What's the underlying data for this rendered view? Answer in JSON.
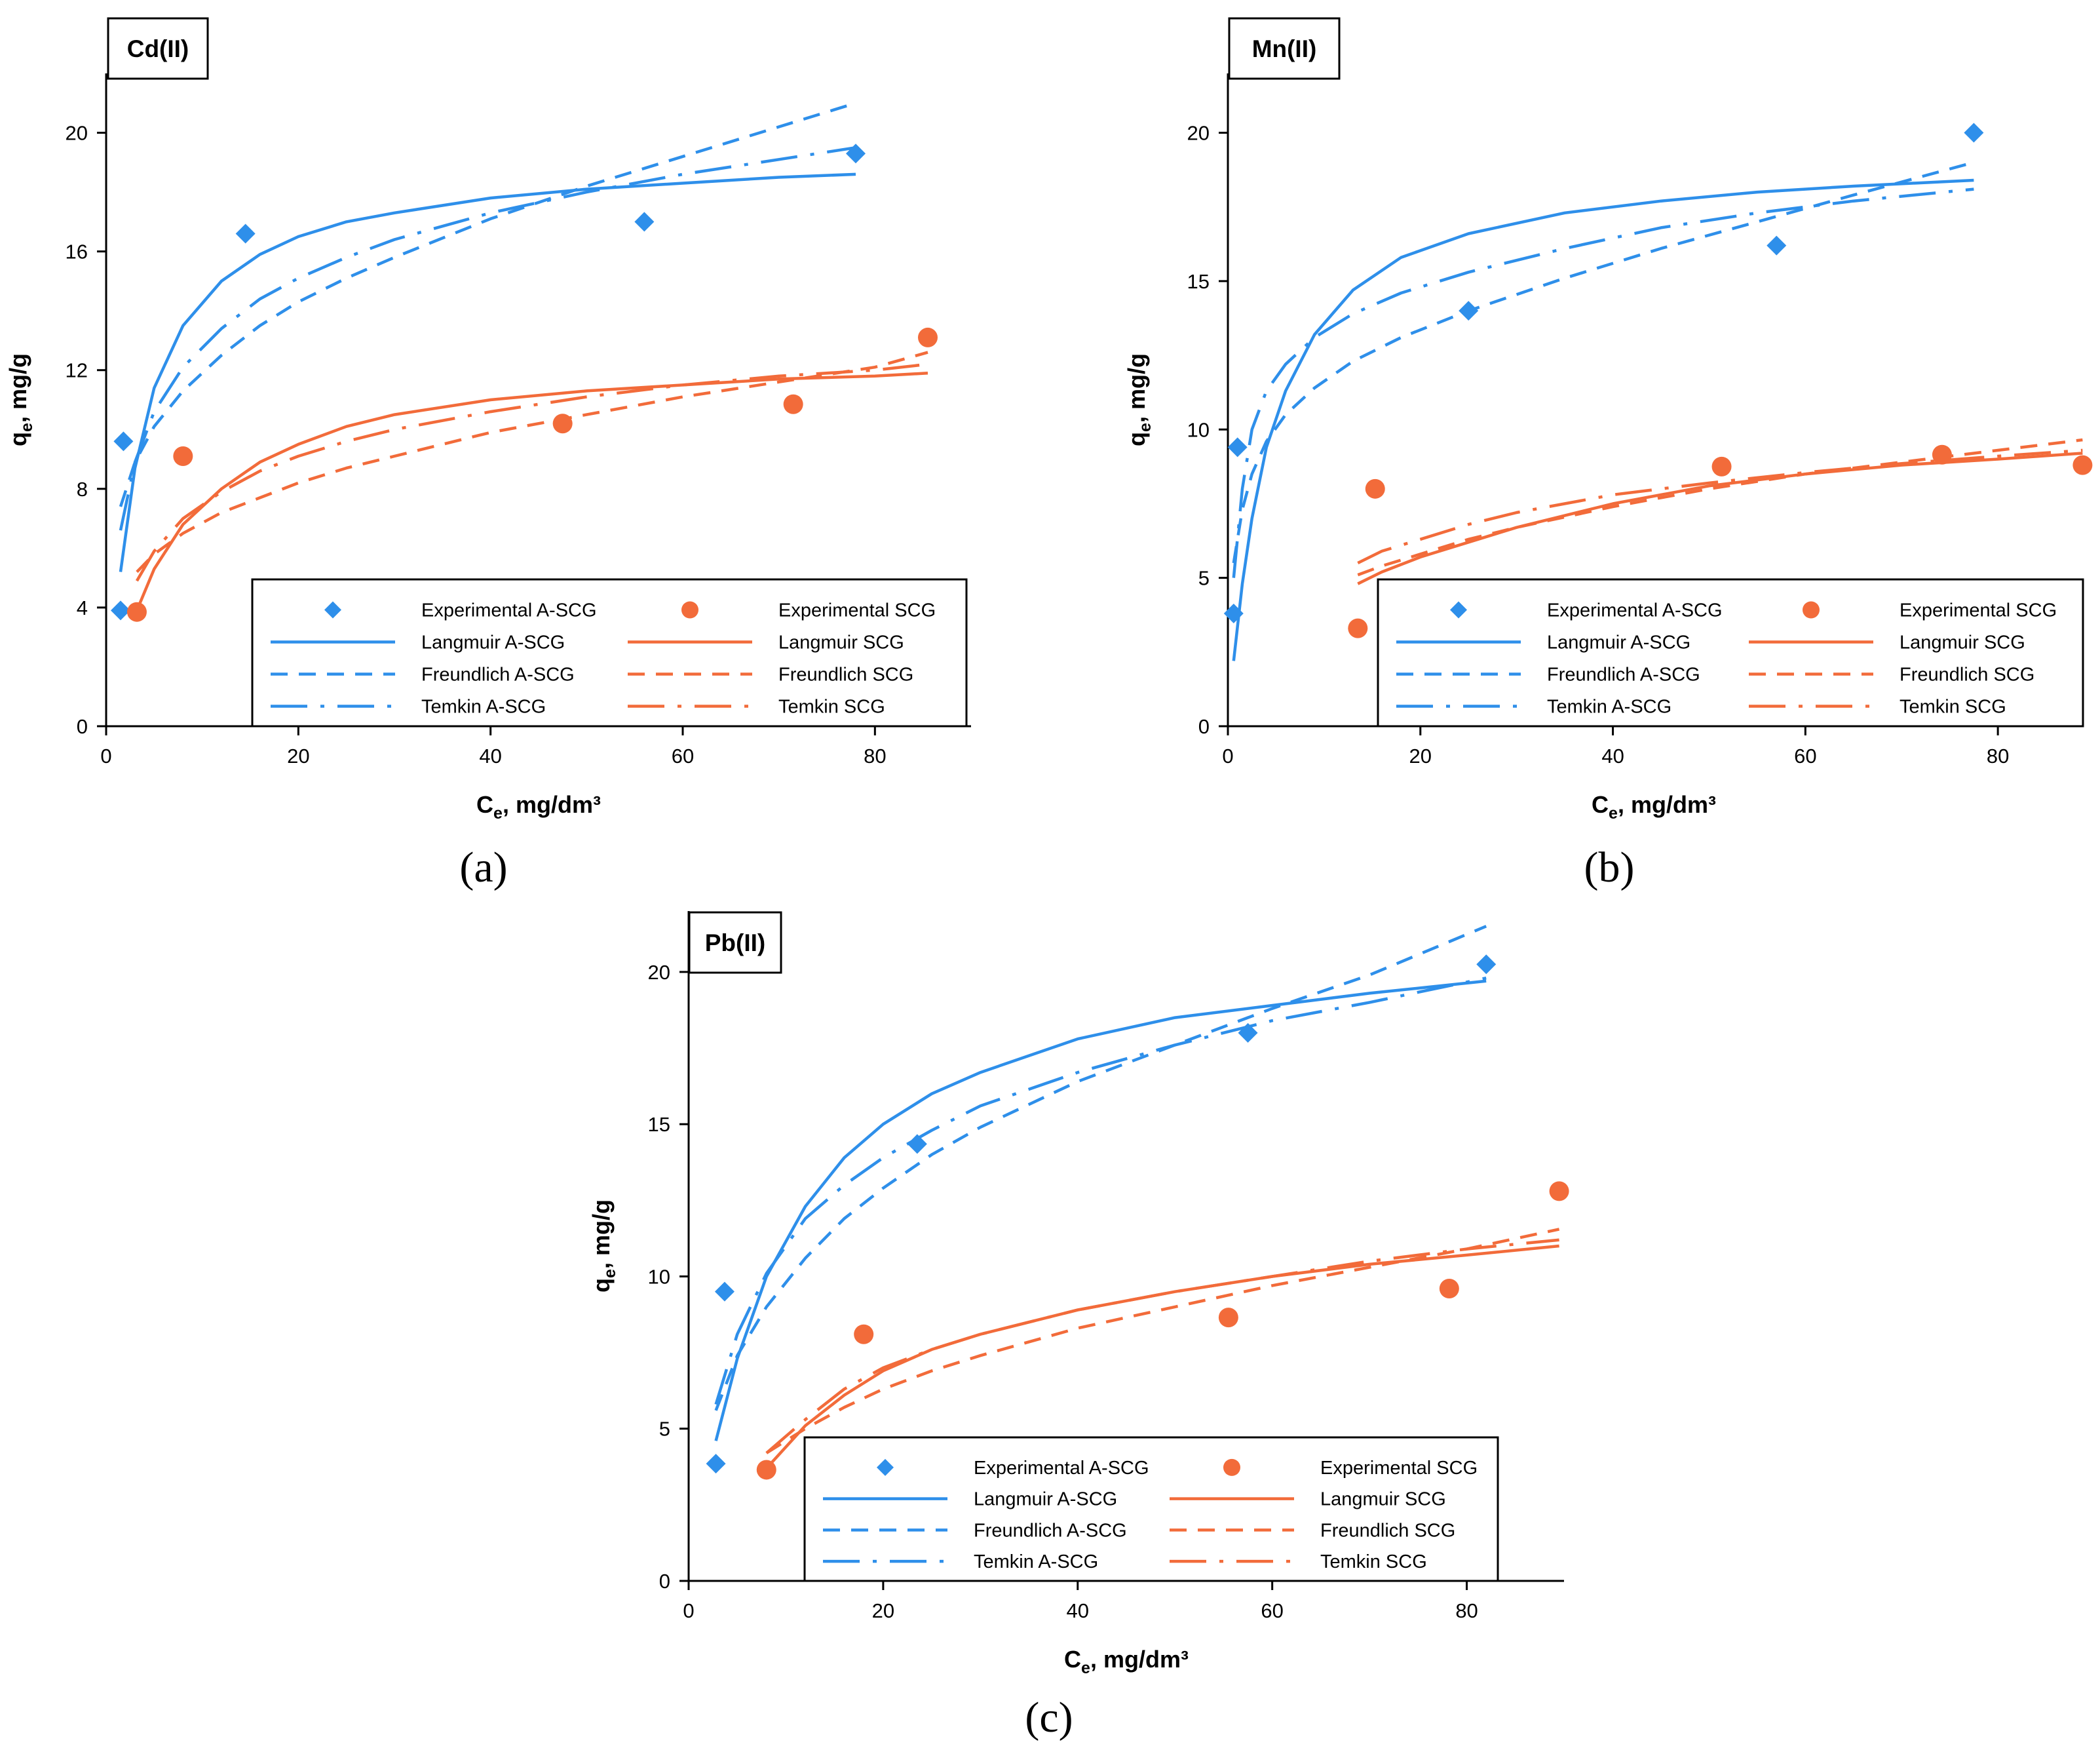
{
  "colors": {
    "a_scg": "#2E8FEA",
    "scg": "#F26B3A"
  },
  "legend_labels": {
    "exp_a": "Experimental A-SCG",
    "exp_s": "Experimental SCG",
    "lang_a": "Langmuir A-SCG",
    "lang_s": "Langmuir SCG",
    "freu_a": "Freundlich A-SCG",
    "freu_s": "Freundlich SCG",
    "temk_a": "Temkin A-SCG",
    "temk_s": "Temkin SCG"
  },
  "chart_data": [
    {
      "type": "scatter",
      "panel": "a",
      "caption": "(a)",
      "title": "Cd(II)",
      "xlabel": {
        "main": "C",
        "sub": "e",
        "rest": ", mg/dm³"
      },
      "ylabel": {
        "main": "q",
        "sub": "e",
        "rest": ", mg/g"
      },
      "xlim": [
        0,
        90
      ],
      "ylim": [
        0,
        22
      ],
      "xticks": [
        "0",
        "20",
        "40",
        "60",
        "80"
      ],
      "yticks": [
        "0",
        "4",
        "8",
        "12",
        "16",
        "20"
      ],
      "legend_position": "bottom-right",
      "series": [
        {
          "name": "Experimental A-SCG",
          "kind": "points",
          "color_key": "a_scg",
          "marker": "diamond",
          "x": [
            1.5,
            1.8,
            14.5,
            56,
            78
          ],
          "y": [
            3.9,
            9.6,
            16.6,
            17.0,
            19.3
          ]
        },
        {
          "name": "Experimental SCG",
          "kind": "points",
          "color_key": "scg",
          "marker": "circle",
          "x": [
            3.2,
            8,
            47.5,
            71.5,
            85.5
          ],
          "y": [
            3.85,
            9.1,
            10.2,
            10.85,
            13.1
          ]
        },
        {
          "name": "Langmuir A-SCG",
          "kind": "line",
          "color_key": "a_scg",
          "dash": "solid",
          "x": [
            1.5,
            3,
            5,
            8,
            12,
            16,
            20,
            25,
            30,
            40,
            50,
            60,
            70,
            78
          ],
          "y": [
            5.2,
            8.7,
            11.4,
            13.5,
            15.0,
            15.9,
            16.5,
            17.0,
            17.3,
            17.8,
            18.1,
            18.3,
            18.5,
            18.6
          ]
        },
        {
          "name": "Freundlich A-SCG",
          "kind": "line",
          "color_key": "a_scg",
          "dash": "dash",
          "x": [
            1.5,
            3,
            5,
            8,
            12,
            16,
            20,
            25,
            30,
            40,
            50,
            60,
            70,
            78
          ],
          "y": [
            7.4,
            8.9,
            10.1,
            11.3,
            12.5,
            13.5,
            14.3,
            15.1,
            15.8,
            17.1,
            18.2,
            19.2,
            20.2,
            21.0
          ]
        },
        {
          "name": "Temkin A-SCG",
          "kind": "line",
          "color_key": "a_scg",
          "dash": "dashdot",
          "x": [
            1.5,
            3,
            5,
            8,
            12,
            16,
            20,
            25,
            30,
            40,
            50,
            60,
            70,
            78
          ],
          "y": [
            6.6,
            8.9,
            10.6,
            12.1,
            13.4,
            14.4,
            15.1,
            15.8,
            16.4,
            17.3,
            18.0,
            18.6,
            19.1,
            19.5
          ]
        },
        {
          "name": "Langmuir SCG",
          "kind": "line",
          "color_key": "scg",
          "dash": "solid",
          "x": [
            3.2,
            5,
            8,
            12,
            16,
            20,
            25,
            30,
            40,
            50,
            60,
            70,
            80,
            85.5
          ],
          "y": [
            3.9,
            5.3,
            6.8,
            8.0,
            8.9,
            9.5,
            10.1,
            10.5,
            11.0,
            11.3,
            11.5,
            11.7,
            11.8,
            11.9
          ]
        },
        {
          "name": "Freundlich SCG",
          "kind": "line",
          "color_key": "scg",
          "dash": "dash",
          "x": [
            3.2,
            5,
            8,
            12,
            16,
            20,
            25,
            30,
            40,
            50,
            60,
            70,
            80,
            85.5
          ],
          "y": [
            5.2,
            5.8,
            6.5,
            7.2,
            7.7,
            8.2,
            8.7,
            9.1,
            9.9,
            10.5,
            11.1,
            11.6,
            12.1,
            12.6
          ]
        },
        {
          "name": "Temkin SCG",
          "kind": "line",
          "color_key": "scg",
          "dash": "dashdot",
          "x": [
            3.2,
            5,
            8,
            12,
            16,
            20,
            25,
            30,
            40,
            50,
            60,
            70,
            80,
            85.5
          ],
          "y": [
            4.9,
            5.9,
            7.0,
            7.9,
            8.6,
            9.1,
            9.6,
            10.0,
            10.6,
            11.1,
            11.5,
            11.8,
            12.0,
            12.2
          ]
        }
      ]
    },
    {
      "type": "scatter",
      "panel": "b",
      "caption": "(b)",
      "title": "Mn(II)",
      "xlabel": {
        "main": "C",
        "sub": "e",
        "rest": ", mg/dm³"
      },
      "ylabel": {
        "main": "q",
        "sub": "e",
        "rest": ", mg/g"
      },
      "xlim": [
        0,
        88.5
      ],
      "ylim": [
        0,
        22
      ],
      "xticks": [
        "0",
        "20",
        "40",
        "60",
        "80"
      ],
      "yticks": [
        "0",
        "5",
        "10",
        "15",
        "20"
      ],
      "legend_position": "bottom-right",
      "series": [
        {
          "name": "Experimental A-SCG",
          "kind": "points",
          "color_key": "a_scg",
          "marker": "diamond",
          "x": [
            0.6,
            1.0,
            25,
            57,
            77.5
          ],
          "y": [
            3.8,
            9.4,
            14.0,
            16.2,
            20.0
          ]
        },
        {
          "name": "Experimental SCG",
          "kind": "points",
          "color_key": "scg",
          "marker": "circle",
          "x": [
            13.5,
            15.3,
            51.3,
            74.2,
            88.8
          ],
          "y": [
            3.3,
            8.0,
            8.75,
            9.15,
            8.8
          ]
        },
        {
          "name": "Langmuir A-SCG",
          "kind": "line",
          "color_key": "a_scg",
          "dash": "solid",
          "x": [
            0.6,
            1.5,
            2.5,
            4,
            6,
            9,
            13,
            18,
            25,
            35,
            45,
            55,
            65,
            77.5
          ],
          "y": [
            2.2,
            4.8,
            7.0,
            9.4,
            11.3,
            13.2,
            14.7,
            15.8,
            16.6,
            17.3,
            17.7,
            18.0,
            18.2,
            18.4
          ]
        },
        {
          "name": "Freundlich A-SCG",
          "kind": "line",
          "color_key": "a_scg",
          "dash": "dash",
          "x": [
            0.6,
            1.5,
            2.5,
            4,
            6,
            9,
            13,
            18,
            25,
            35,
            45,
            55,
            65,
            77.5
          ],
          "y": [
            5.5,
            7.3,
            8.5,
            9.6,
            10.5,
            11.4,
            12.3,
            13.1,
            14.0,
            15.1,
            16.1,
            17.0,
            17.9,
            19.0
          ]
        },
        {
          "name": "Temkin A-SCG",
          "kind": "line",
          "color_key": "a_scg",
          "dash": "dashdot",
          "x": [
            0.6,
            1.5,
            2.5,
            4,
            6,
            9,
            13,
            18,
            25,
            35,
            45,
            55,
            65,
            77.5
          ],
          "y": [
            5.0,
            8.0,
            10.0,
            11.3,
            12.2,
            13.1,
            13.9,
            14.6,
            15.3,
            16.1,
            16.8,
            17.3,
            17.7,
            18.1
          ]
        },
        {
          "name": "Langmuir SCG",
          "kind": "line",
          "color_key": "scg",
          "dash": "solid",
          "x": [
            13.5,
            16,
            20,
            25,
            30,
            40,
            50,
            60,
            70,
            80,
            88.8
          ],
          "y": [
            4.8,
            5.2,
            5.7,
            6.2,
            6.7,
            7.5,
            8.1,
            8.5,
            8.8,
            9.0,
            9.2
          ]
        },
        {
          "name": "Freundlich SCG",
          "kind": "line",
          "color_key": "scg",
          "dash": "dash",
          "x": [
            13.5,
            16,
            20,
            25,
            30,
            40,
            50,
            60,
            70,
            80,
            88.8
          ],
          "y": [
            5.1,
            5.4,
            5.8,
            6.3,
            6.7,
            7.4,
            8.0,
            8.5,
            8.9,
            9.3,
            9.65
          ]
        },
        {
          "name": "Temkin SCG",
          "kind": "line",
          "color_key": "scg",
          "dash": "dashdot",
          "x": [
            13.5,
            16,
            20,
            25,
            30,
            40,
            50,
            60,
            70,
            80,
            88.8
          ],
          "y": [
            5.5,
            5.9,
            6.3,
            6.8,
            7.2,
            7.8,
            8.2,
            8.55,
            8.85,
            9.1,
            9.3
          ]
        }
      ]
    },
    {
      "type": "scatter",
      "panel": "c",
      "caption": "(c)",
      "title": "Pb(II)",
      "xlabel": {
        "main": "C",
        "sub": "e",
        "rest": ", mg/dm³"
      },
      "ylabel": {
        "main": "q",
        "sub": "e",
        "rest": ", mg/g"
      },
      "xlim": [
        0,
        90
      ],
      "ylim": [
        0,
        22
      ],
      "xticks": [
        "0",
        "20",
        "40",
        "60",
        "80"
      ],
      "yticks": [
        "0",
        "5",
        "10",
        "15",
        "20"
      ],
      "legend_position": "bottom-right",
      "series": [
        {
          "name": "Experimental A-SCG",
          "kind": "points",
          "color_key": "a_scg",
          "marker": "diamond",
          "x": [
            2.8,
            3.7,
            23.5,
            57.5,
            82
          ],
          "y": [
            3.85,
            9.5,
            14.35,
            18.0,
            20.25
          ]
        },
        {
          "name": "Experimental SCG",
          "kind": "points",
          "color_key": "scg",
          "marker": "circle",
          "x": [
            8,
            18,
            55.5,
            78.2,
            89.5
          ],
          "y": [
            3.65,
            8.1,
            8.65,
            9.6,
            12.8
          ]
        },
        {
          "name": "Langmuir A-SCG",
          "kind": "line",
          "color_key": "a_scg",
          "dash": "solid",
          "x": [
            2.8,
            5,
            8,
            12,
            16,
            20,
            25,
            30,
            40,
            50,
            60,
            70,
            82
          ],
          "y": [
            4.6,
            7.3,
            10.0,
            12.3,
            13.9,
            15.0,
            16.0,
            16.7,
            17.8,
            18.5,
            18.9,
            19.3,
            19.7
          ]
        },
        {
          "name": "Freundlich A-SCG",
          "kind": "line",
          "color_key": "a_scg",
          "dash": "dash",
          "x": [
            2.8,
            5,
            8,
            12,
            16,
            20,
            25,
            30,
            40,
            50,
            60,
            70,
            82
          ],
          "y": [
            5.6,
            7.4,
            9.0,
            10.6,
            11.9,
            12.9,
            14.0,
            14.9,
            16.4,
            17.6,
            18.8,
            19.9,
            21.5
          ]
        },
        {
          "name": "Temkin A-SCG",
          "kind": "line",
          "color_key": "a_scg",
          "dash": "dashdot",
          "x": [
            2.8,
            5,
            8,
            12,
            16,
            20,
            25,
            30,
            40,
            50,
            60,
            70,
            82
          ],
          "y": [
            5.8,
            8.1,
            10.1,
            11.9,
            13.0,
            13.9,
            14.8,
            15.6,
            16.7,
            17.6,
            18.4,
            19.0,
            19.8
          ]
        },
        {
          "name": "Langmuir SCG",
          "kind": "line",
          "color_key": "scg",
          "dash": "solid",
          "x": [
            8,
            12,
            16,
            20,
            25,
            30,
            40,
            50,
            60,
            70,
            80,
            89.5
          ],
          "y": [
            3.7,
            5.1,
            6.1,
            6.9,
            7.6,
            8.1,
            8.9,
            9.5,
            10.0,
            10.4,
            10.7,
            11.0
          ]
        },
        {
          "name": "Freundlich SCG",
          "kind": "line",
          "color_key": "scg",
          "dash": "dash",
          "x": [
            8,
            12,
            16,
            20,
            25,
            30,
            40,
            50,
            60,
            70,
            80,
            89.5
          ],
          "y": [
            4.2,
            5.0,
            5.7,
            6.3,
            6.9,
            7.4,
            8.3,
            9.0,
            9.7,
            10.3,
            10.9,
            11.55
          ]
        },
        {
          "name": "Temkin SCG",
          "kind": "line",
          "color_key": "scg",
          "dash": "dashdot",
          "x": [
            8,
            12,
            16,
            20,
            25,
            30,
            40,
            50,
            60,
            70,
            80,
            89.5
          ],
          "y": [
            4.2,
            5.3,
            6.3,
            7.0,
            7.6,
            8.1,
            8.9,
            9.5,
            10.0,
            10.5,
            10.9,
            11.2
          ]
        }
      ]
    }
  ]
}
